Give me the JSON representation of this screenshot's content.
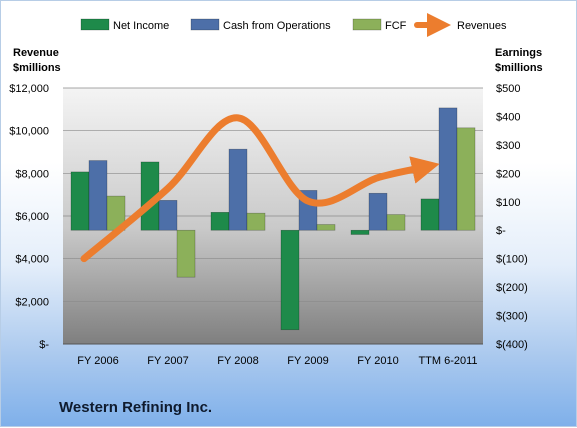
{
  "chart_data": {
    "type": "bar",
    "title": "Western Refining Inc.",
    "categories": [
      "FY 2006",
      "FY 2007",
      "FY 2008",
      "FY 2009",
      "FY 2010",
      "TTM 6-2011"
    ],
    "series": [
      {
        "name": "Net Income",
        "axis": "right",
        "kind": "bar",
        "color": "#1e8a4a",
        "values": [
          205,
          240,
          63,
          -350,
          -15,
          110
        ]
      },
      {
        "name": "Cash from Operations",
        "axis": "right",
        "kind": "bar",
        "color": "#4d6fa8",
        "values": [
          245,
          105,
          285,
          140,
          130,
          430
        ]
      },
      {
        "name": "FCF",
        "axis": "right",
        "kind": "bar",
        "color": "#8cb05a",
        "values": [
          120,
          -165,
          60,
          20,
          55,
          360
        ]
      },
      {
        "name": "Revenues",
        "axis": "left",
        "kind": "line",
        "color": "#ec7d2e",
        "values": [
          4000,
          7300,
          10600,
          6700,
          7800,
          8300
        ]
      }
    ],
    "left_axis": {
      "label_line1": "Revenue",
      "label_line2": "$millions",
      "ylim": [
        0,
        12000
      ],
      "ticks": [
        0,
        2000,
        4000,
        6000,
        8000,
        10000,
        12000
      ],
      "tick_labels": [
        "$-",
        "$2,000",
        "$4,000",
        "$6,000",
        "$8,000",
        "$10,000",
        "$12,000"
      ]
    },
    "right_axis": {
      "label_line1": "Earnings",
      "label_line2": "$millions",
      "ylim": [
        -400,
        500
      ],
      "ticks": [
        -400,
        -300,
        -200,
        -100,
        0,
        100,
        200,
        300,
        400,
        500
      ],
      "tick_labels": [
        "$(400)",
        "$(300)",
        "$(200)",
        "$(100)",
        "$-",
        "$100",
        "$200",
        "$300",
        "$400",
        "$500"
      ]
    },
    "grid": true,
    "legend_position": "top"
  }
}
